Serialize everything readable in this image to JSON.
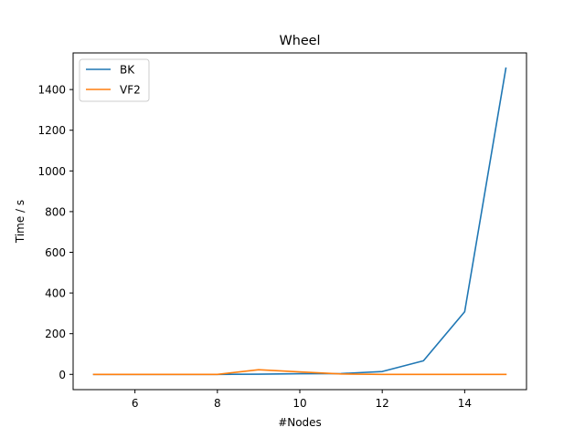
{
  "chart_data": {
    "type": "line",
    "title": "Wheel",
    "xlabel": "#Nodes",
    "ylabel": "Time / s",
    "xlim": [
      4.5,
      15.5
    ],
    "ylim": [
      -75,
      1580
    ],
    "xticks": [
      6,
      8,
      10,
      12,
      14
    ],
    "yticks": [
      0,
      200,
      400,
      600,
      800,
      1000,
      1200,
      1400
    ],
    "grid": false,
    "legend_position": "top-left",
    "x": [
      5,
      6,
      7,
      8,
      9,
      10,
      11,
      12,
      13,
      14,
      15
    ],
    "series": [
      {
        "name": "BK",
        "color": "#1f77b4",
        "values": [
          0,
          0,
          0,
          0,
          1,
          3,
          4,
          14,
          67,
          308,
          1505
        ]
      },
      {
        "name": "VF2",
        "color": "#ff7f0e",
        "values": [
          0,
          0,
          0,
          0,
          23,
          12,
          2,
          0,
          0,
          0,
          0
        ]
      }
    ]
  }
}
